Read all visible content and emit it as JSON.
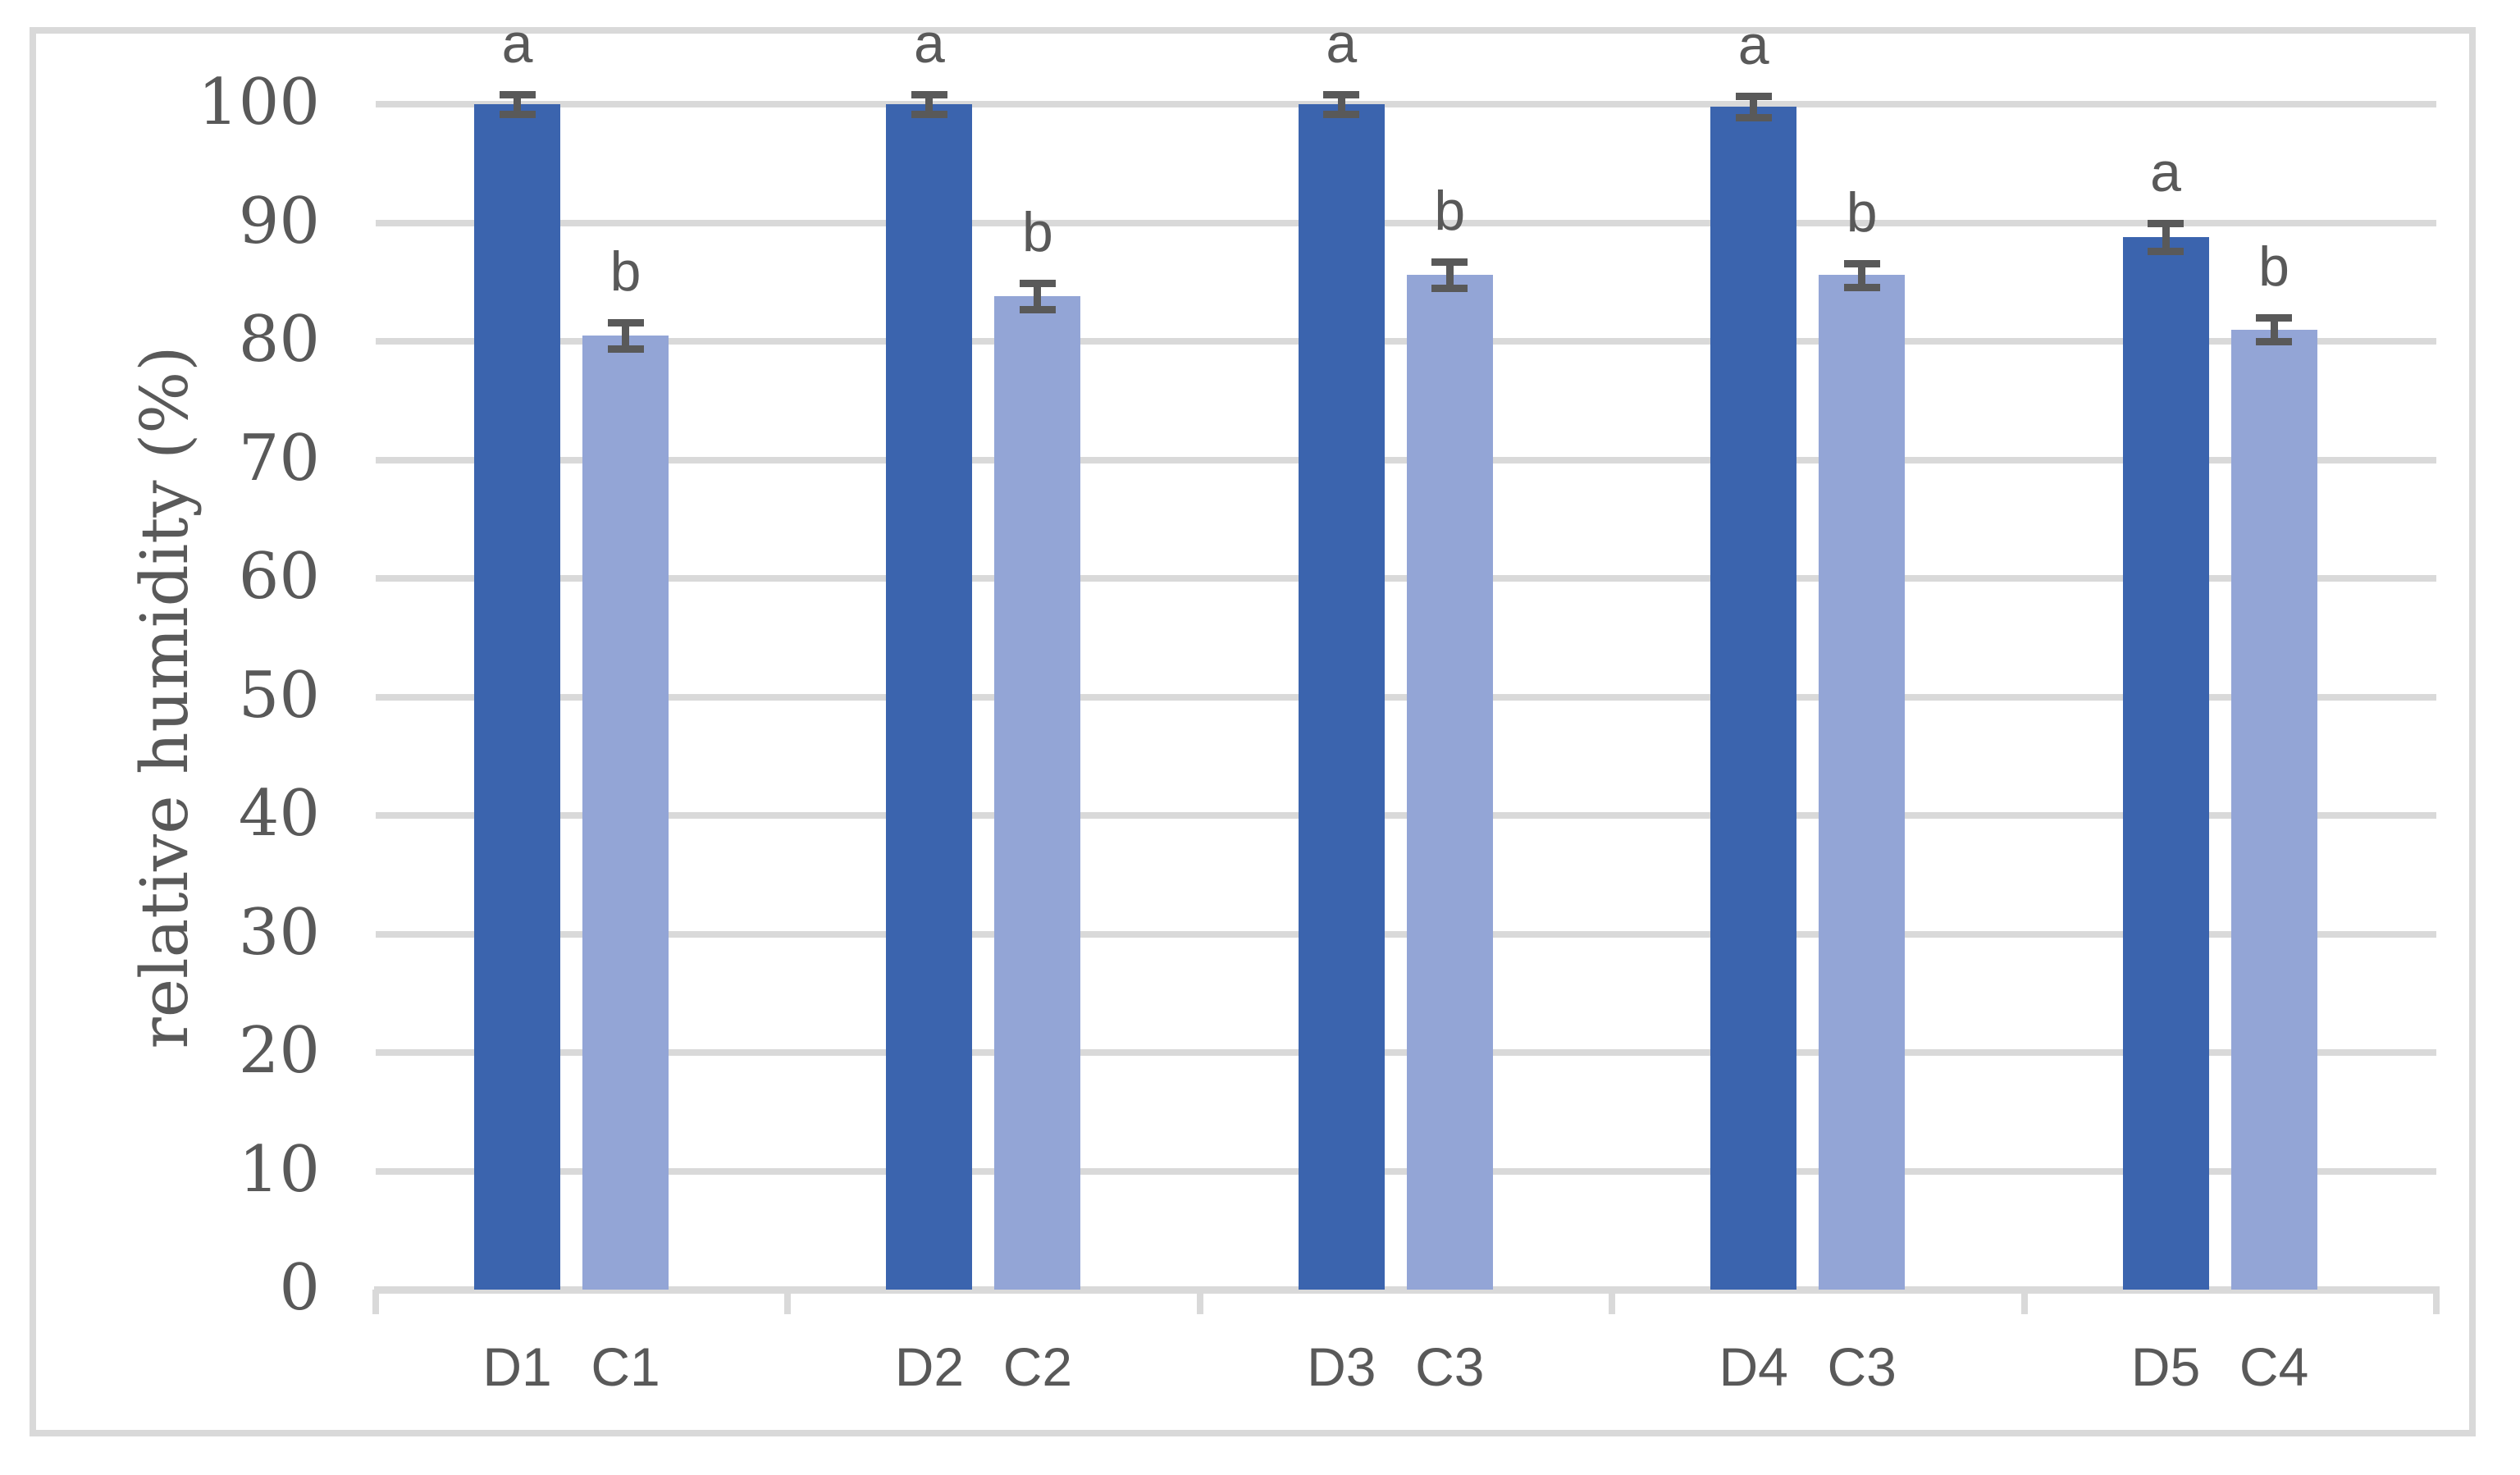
{
  "figure": {
    "frame_border_color": "#d9d9d9",
    "background_color": "#ffffff"
  },
  "chart_data": {
    "type": "bar",
    "title": "",
    "xlabel": "",
    "ylabel": "relative humidity (%)",
    "ylim": [
      0,
      100
    ],
    "yticks": [
      0,
      10,
      20,
      30,
      40,
      50,
      60,
      70,
      80,
      90,
      100
    ],
    "grid": true,
    "legend": "none",
    "categories": [
      "D1",
      "C1",
      "D2",
      "C2",
      "D3",
      "C3",
      "D4",
      "C3",
      "D5",
      "C4"
    ],
    "series": [
      {
        "name": "D (dark blue bars)",
        "values": [
          100.0,
          100.0,
          100.0,
          99.8,
          88.8
        ]
      },
      {
        "name": "C (light blue bars)",
        "values": [
          80.5,
          83.8,
          85.6,
          85.6,
          81.0
        ]
      }
    ],
    "groups": [
      {
        "bars": [
          {
            "label": "D1",
            "series": "D",
            "value": 100.0,
            "error": 0.8,
            "sig_letter": "a"
          },
          {
            "label": "C1",
            "series": "C",
            "value": 80.5,
            "error": 1.1,
            "sig_letter": "b"
          }
        ]
      },
      {
        "bars": [
          {
            "label": "D2",
            "series": "D",
            "value": 100.0,
            "error": 0.8,
            "sig_letter": "a"
          },
          {
            "label": "C2",
            "series": "C",
            "value": 83.8,
            "error": 1.1,
            "sig_letter": "b"
          }
        ]
      },
      {
        "bars": [
          {
            "label": "D3",
            "series": "D",
            "value": 100.0,
            "error": 0.8,
            "sig_letter": "a"
          },
          {
            "label": "C3",
            "series": "C",
            "value": 85.6,
            "error": 1.1,
            "sig_letter": "b"
          }
        ]
      },
      {
        "bars": [
          {
            "label": "D4",
            "series": "D",
            "value": 99.8,
            "error": 0.9,
            "sig_letter": "a"
          },
          {
            "label": "C3",
            "series": "C",
            "value": 85.6,
            "error": 1.0,
            "sig_letter": "b"
          }
        ]
      },
      {
        "bars": [
          {
            "label": "D5",
            "series": "D",
            "value": 88.8,
            "error": 1.2,
            "sig_letter": "a"
          },
          {
            "label": "C4",
            "series": "C",
            "value": 81.0,
            "error": 1.0,
            "sig_letter": "b"
          }
        ]
      }
    ],
    "series_colors": {
      "D": "#3b64ae",
      "C": "#93a5d6"
    },
    "gridline_color": "#d9d9d9",
    "axis_color": "#d9d9d9",
    "error_bar_color": "#595959",
    "text_color": "#595959"
  }
}
